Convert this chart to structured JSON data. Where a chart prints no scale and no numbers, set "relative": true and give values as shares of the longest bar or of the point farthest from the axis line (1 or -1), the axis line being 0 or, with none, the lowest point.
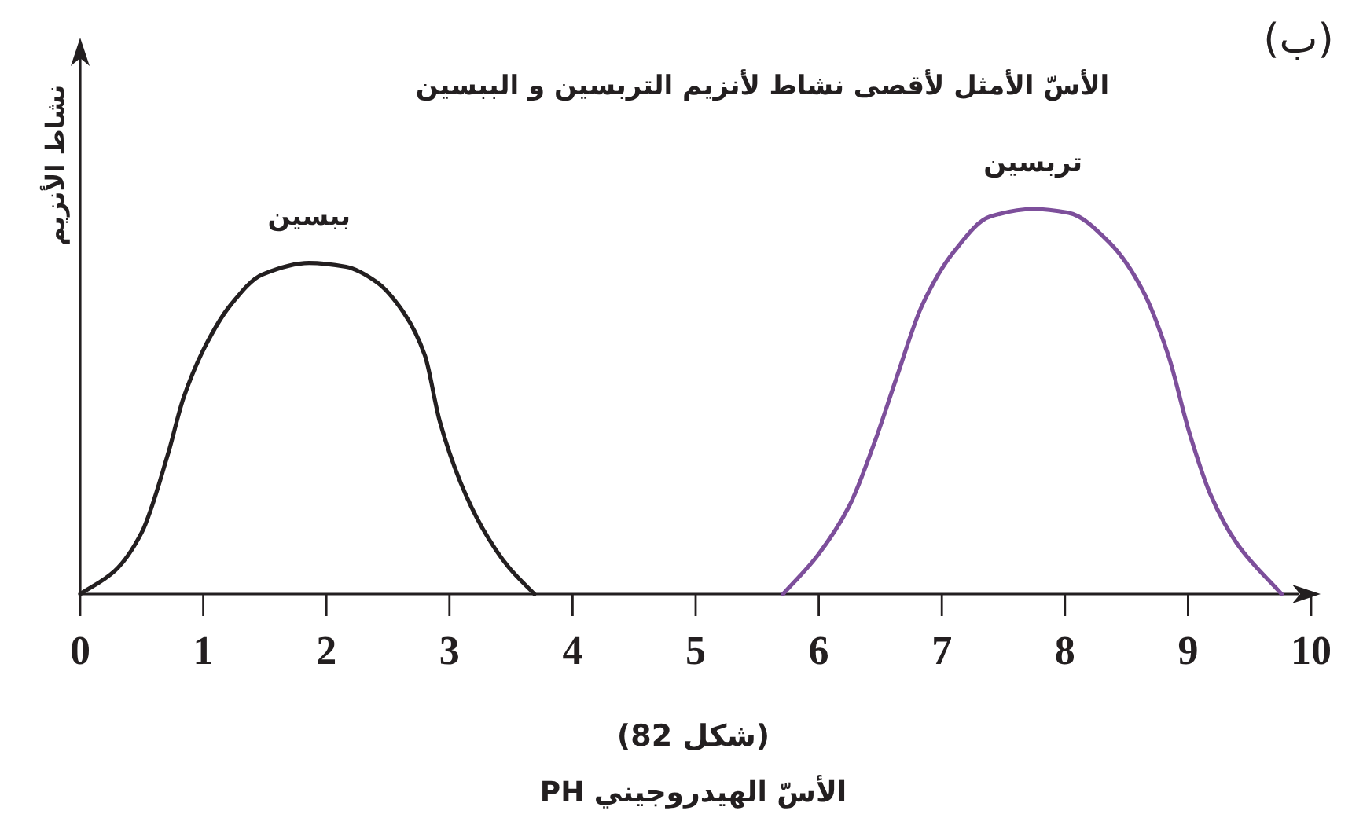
{
  "chart_data": {
    "type": "line",
    "title": "الأسّ الأمثل لأقصى نشاط لأنزيم التربسين و الببسين",
    "xlabel": "الأسّ الهيدروجيني PH",
    "ylabel": "نشاط الأنزيم",
    "relative": true,
    "xlim": [
      0,
      10
    ],
    "xticks": [
      0,
      1,
      2,
      3,
      4,
      5,
      6,
      7,
      8,
      9,
      10
    ],
    "series": [
      {
        "name": "ببسين",
        "color": "#231f20",
        "x": [
          0,
          0.28,
          0.5,
          0.71,
          0.84,
          1.01,
          1.22,
          1.48,
          1.86,
          2.16,
          2.41,
          2.63,
          2.8,
          2.92,
          3.09,
          3.27,
          3.48,
          3.69
        ],
        "values": [
          0,
          0.06,
          0.16,
          0.36,
          0.51,
          0.64,
          0.75,
          0.83,
          0.86,
          0.85,
          0.81,
          0.73,
          0.62,
          0.45,
          0.29,
          0.17,
          0.07,
          0
        ]
      },
      {
        "name": "تربسين",
        "color": "#7d4f9b",
        "x": [
          5.71,
          5.99,
          6.25,
          6.46,
          6.63,
          6.84,
          7.1,
          7.39,
          7.74,
          8.03,
          8.37,
          8.63,
          8.84,
          9.01,
          9.18,
          9.4,
          9.76
        ],
        "values": [
          0,
          0.1,
          0.23,
          0.4,
          0.56,
          0.75,
          0.89,
          0.98,
          1,
          0.99,
          0.91,
          0.79,
          0.62,
          0.42,
          0.26,
          0.13,
          0
        ]
      }
    ],
    "annotations": [
      "(ب)",
      "(شكل 82)"
    ]
  }
}
